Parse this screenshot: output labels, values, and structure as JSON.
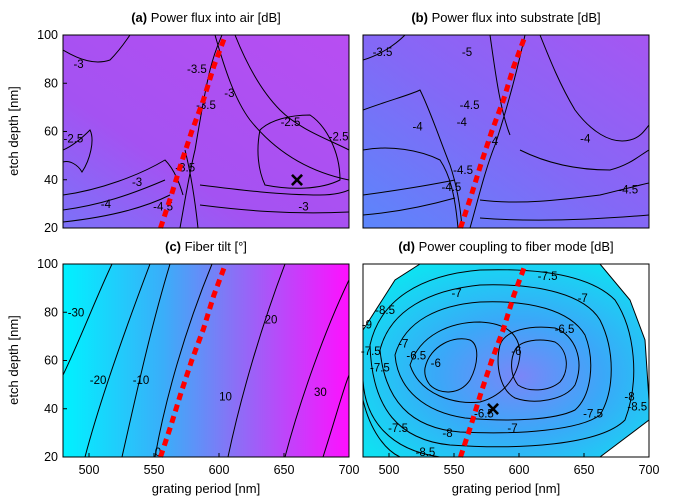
{
  "figure": {
    "rows": 2,
    "cols": 2
  },
  "chart_data": [
    {
      "type": "contour",
      "panel_letter": "(a)",
      "title": "Power flux into air [dB]",
      "xlabel": "",
      "ylabel": "etch depth [nm]",
      "xlim": [
        480,
        700
      ],
      "ylim": [
        20,
        100
      ],
      "x_ticks": [],
      "y_ticks": [
        "20",
        "40",
        "60",
        "80",
        "100"
      ],
      "colormap": [
        "#c051f0",
        "#4d8dfc"
      ],
      "background_color": "#b14ef2",
      "contour_labels": [
        {
          "text": "-3",
          "x": 492,
          "y": 88
        },
        {
          "text": "-2.5",
          "x": 488,
          "y": 57
        },
        {
          "text": "-3.5",
          "x": 583,
          "y": 86
        },
        {
          "text": "-3",
          "x": 608,
          "y": 76
        },
        {
          "text": "-3.5",
          "x": 590,
          "y": 71
        },
        {
          "text": "-2.5",
          "x": 655,
          "y": 64
        },
        {
          "text": "-2.5",
          "x": 692,
          "y": 58
        },
        {
          "text": "-3.5",
          "x": 574,
          "y": 45
        },
        {
          "text": "-3",
          "x": 537,
          "y": 39
        },
        {
          "text": "-4",
          "x": 513,
          "y": 30
        },
        {
          "text": "-4.5",
          "x": 557,
          "y": 29
        },
        {
          "text": "-3",
          "x": 665,
          "y": 29
        }
      ],
      "optimum_marker": {
        "x": 660,
        "y": 40,
        "symbol": "×"
      },
      "dashed_line": {
        "x": [
          555,
          563,
          571,
          579,
          588,
          596,
          605
        ],
        "y": [
          20,
          33,
          47,
          60,
          73,
          87,
          100
        ],
        "color": "#ff0000"
      }
    },
    {
      "type": "contour",
      "panel_letter": "(b)",
      "title": "Power flux into substrate [dB]",
      "xlabel": "",
      "ylabel": "",
      "xlim": [
        480,
        700
      ],
      "ylim": [
        20,
        100
      ],
      "x_ticks": [],
      "y_ticks": [],
      "colormap": [
        "#a84ff2",
        "#4b8efc"
      ],
      "background_color": "#8a68f6",
      "contour_labels": [
        {
          "text": "-3.5",
          "x": 495,
          "y": 93
        },
        {
          "text": "-4",
          "x": 522,
          "y": 62
        },
        {
          "text": "-4",
          "x": 556,
          "y": 64
        },
        {
          "text": "-4.5",
          "x": 562,
          "y": 71
        },
        {
          "text": "-4",
          "x": 580,
          "y": 56
        },
        {
          "text": "-4",
          "x": 651,
          "y": 57
        },
        {
          "text": "-4.5",
          "x": 557,
          "y": 44
        },
        {
          "text": "-4.5",
          "x": 548,
          "y": 37
        },
        {
          "text": "-4.5",
          "x": 684,
          "y": 36
        },
        {
          "text": "-5",
          "x": 560,
          "y": 93
        }
      ],
      "dashed_line": {
        "x": [
          555,
          563,
          571,
          579,
          588,
          596,
          605
        ],
        "y": [
          20,
          33,
          47,
          60,
          73,
          87,
          100
        ],
        "color": "#ff0000"
      }
    },
    {
      "type": "contour",
      "panel_letter": "(c)",
      "title": "Fiber tilt [°]",
      "xlabel": "grating period [nm]",
      "ylabel": "etch depth [nm]",
      "xlim": [
        480,
        700
      ],
      "ylim": [
        20,
        100
      ],
      "x_ticks": [
        "500",
        "550",
        "600",
        "650",
        "700"
      ],
      "y_ticks": [
        "20",
        "40",
        "60",
        "80",
        "100"
      ],
      "colormap": [
        "#00ffff",
        "#ff00ff"
      ],
      "contour_levels": [
        -30,
        -20,
        -10,
        0,
        10,
        20,
        30
      ],
      "contour_labels": [
        {
          "text": "-30",
          "x": 490,
          "y": 80
        },
        {
          "text": "-20",
          "x": 507,
          "y": 52
        },
        {
          "text": "-10",
          "x": 540,
          "y": 52
        },
        {
          "text": "0",
          "x": 553,
          "y": 22
        },
        {
          "text": "10",
          "x": 605,
          "y": 45
        },
        {
          "text": "20",
          "x": 640,
          "y": 77
        },
        {
          "text": "30",
          "x": 678,
          "y": 47
        }
      ],
      "dashed_line": {
        "x": [
          555,
          563,
          571,
          579,
          588,
          596,
          605
        ],
        "y": [
          20,
          33,
          47,
          60,
          73,
          87,
          100
        ],
        "color": "#ff0000"
      }
    },
    {
      "type": "contour",
      "panel_letter": "(d)",
      "title": "Power coupling to fiber mode [dB]",
      "xlabel": "grating period [nm]",
      "ylabel": "",
      "xlim": [
        480,
        700
      ],
      "ylim": [
        20,
        100
      ],
      "x_ticks": [
        "500",
        "550",
        "600",
        "650",
        "700"
      ],
      "y_ticks": [],
      "colormap": [
        "#00ddee",
        "#7f7ff8"
      ],
      "contour_labels": [
        {
          "text": "-7.5",
          "x": 622,
          "y": 95
        },
        {
          "text": "-8.5",
          "x": 497,
          "y": 81
        },
        {
          "text": "-9",
          "x": 483,
          "y": 75
        },
        {
          "text": "-7",
          "x": 552,
          "y": 88
        },
        {
          "text": "-7",
          "x": 649,
          "y": 86
        },
        {
          "text": "-6.5",
          "x": 635,
          "y": 73
        },
        {
          "text": "-7",
          "x": 511,
          "y": 67
        },
        {
          "text": "-6.5",
          "x": 521,
          "y": 62
        },
        {
          "text": "-7.5",
          "x": 486,
          "y": 64
        },
        {
          "text": "-7.5",
          "x": 493,
          "y": 57
        },
        {
          "text": "-6",
          "x": 536,
          "y": 59
        },
        {
          "text": "-6",
          "x": 598,
          "y": 64
        },
        {
          "text": "-8",
          "x": 685,
          "y": 45
        },
        {
          "text": "-8.5",
          "x": 691,
          "y": 41
        },
        {
          "text": "-7.5",
          "x": 657,
          "y": 38
        },
        {
          "text": "-6.5",
          "x": 573,
          "y": 38
        },
        {
          "text": "-7",
          "x": 595,
          "y": 32
        },
        {
          "text": "-7.5",
          "x": 507,
          "y": 32
        },
        {
          "text": "-8",
          "x": 545,
          "y": 30
        },
        {
          "text": "-8.5",
          "x": 528,
          "y": 22
        }
      ],
      "optimum_marker": {
        "x": 580,
        "y": 40,
        "symbol": "×"
      },
      "dashed_line": {
        "x": [
          555,
          563,
          571,
          579,
          588,
          596,
          605
        ],
        "y": [
          20,
          33,
          47,
          60,
          73,
          87,
          100
        ],
        "color": "#ff0000"
      }
    }
  ]
}
